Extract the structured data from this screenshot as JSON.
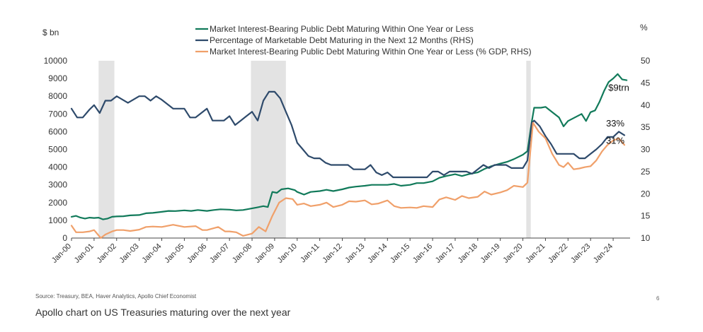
{
  "footer": {
    "source": "Source: Treasury, BEA, Haver Analytics, Apollo Chief Economist",
    "caption": "Apollo chart on US Treasuries maturing over the next year",
    "page_number": "6"
  },
  "chart_data": {
    "type": "line",
    "y_left_unit": "$ bn",
    "y_right_unit": "%",
    "ylim_left": [
      0,
      10000
    ],
    "ylim_right": [
      10,
      50
    ],
    "y_left_ticks": [
      0,
      1000,
      2000,
      3000,
      4000,
      5000,
      6000,
      7000,
      8000,
      9000,
      10000
    ],
    "y_right_ticks": [
      10,
      15,
      20,
      25,
      30,
      35,
      40,
      45,
      50
    ],
    "x_range": [
      2000.0,
      2024.75
    ],
    "x_tick_labels": [
      "Jan-00",
      "Jan-01",
      "Jan-02",
      "Jan-03",
      "Jan-04",
      "Jan-05",
      "Jan-06",
      "Jan-07",
      "Jan-08",
      "Jan-09",
      "Jan-10",
      "Jan-11",
      "Jan-12",
      "Jan-13",
      "Jan-14",
      "Jan-15",
      "Jan-16",
      "Jan-17",
      "Jan-18",
      "Jan-19",
      "Jan-20",
      "Jan-21",
      "Jan-22",
      "Jan-23",
      "Jan-24"
    ],
    "recession_shading": [
      [
        2001.2,
        2001.9
      ],
      [
        2007.95,
        2009.5
      ],
      [
        2020.15,
        2020.35
      ]
    ],
    "legend": [
      {
        "label": "Market Interest-Bearing Public Debt Maturing Within One Year or Less",
        "color": "#117a5a"
      },
      {
        "label": "Percentage of Marketable Debt Maturing in the Next 12 Months (RHS)",
        "color": "#2e4a6b"
      },
      {
        "label": "Market Interest-Bearing Public Debt Maturing Within One Year or Less (% GDP, RHS)",
        "color": "#f0a06a"
      }
    ],
    "annotations": [
      {
        "text": "$9trn",
        "x": 2024.1,
        "y": 8300,
        "axis": "left"
      },
      {
        "text": "33%",
        "x": 2024.0,
        "y": 35.2,
        "axis": "right"
      },
      {
        "text": "31%",
        "x": 2024.0,
        "y": 31.3,
        "axis": "right"
      }
    ],
    "series": [
      {
        "name": "Market Interest-Bearing Public Debt Maturing Within One Year or Less",
        "axis": "left",
        "color": "#117a5a",
        "points": [
          [
            2000.0,
            1200
          ],
          [
            2000.2,
            1250
          ],
          [
            2000.4,
            1150
          ],
          [
            2000.6,
            1100
          ],
          [
            2000.8,
            1150
          ],
          [
            2001.0,
            1130
          ],
          [
            2001.2,
            1150
          ],
          [
            2001.4,
            1050
          ],
          [
            2001.6,
            1100
          ],
          [
            2001.8,
            1200
          ],
          [
            2002.0,
            1220
          ],
          [
            2002.3,
            1230
          ],
          [
            2002.6,
            1280
          ],
          [
            2003.0,
            1300
          ],
          [
            2003.3,
            1400
          ],
          [
            2003.6,
            1420
          ],
          [
            2004.0,
            1480
          ],
          [
            2004.3,
            1530
          ],
          [
            2004.6,
            1520
          ],
          [
            2005.0,
            1560
          ],
          [
            2005.3,
            1530
          ],
          [
            2005.6,
            1580
          ],
          [
            2006.0,
            1530
          ],
          [
            2006.3,
            1580
          ],
          [
            2006.6,
            1620
          ],
          [
            2007.0,
            1600
          ],
          [
            2007.3,
            1560
          ],
          [
            2007.6,
            1580
          ],
          [
            2007.9,
            1650
          ],
          [
            2008.2,
            1720
          ],
          [
            2008.5,
            1800
          ],
          [
            2008.7,
            1750
          ],
          [
            2008.9,
            2600
          ],
          [
            2009.1,
            2550
          ],
          [
            2009.3,
            2750
          ],
          [
            2009.6,
            2800
          ],
          [
            2009.9,
            2700
          ],
          [
            2010.0,
            2600
          ],
          [
            2010.3,
            2450
          ],
          [
            2010.6,
            2600
          ],
          [
            2011.0,
            2650
          ],
          [
            2011.3,
            2720
          ],
          [
            2011.6,
            2650
          ],
          [
            2012.0,
            2750
          ],
          [
            2012.3,
            2850
          ],
          [
            2012.6,
            2900
          ],
          [
            2013.0,
            2950
          ],
          [
            2013.3,
            3000
          ],
          [
            2013.6,
            3000
          ],
          [
            2014.0,
            3000
          ],
          [
            2014.3,
            3050
          ],
          [
            2014.6,
            2950
          ],
          [
            2015.0,
            3000
          ],
          [
            2015.3,
            3100
          ],
          [
            2015.6,
            3100
          ],
          [
            2016.0,
            3200
          ],
          [
            2016.3,
            3400
          ],
          [
            2016.6,
            3500
          ],
          [
            2017.0,
            3600
          ],
          [
            2017.3,
            3500
          ],
          [
            2017.6,
            3600
          ],
          [
            2018.0,
            3700
          ],
          [
            2018.3,
            3900
          ],
          [
            2018.6,
            4050
          ],
          [
            2019.0,
            4200
          ],
          [
            2019.3,
            4300
          ],
          [
            2019.6,
            4450
          ],
          [
            2020.0,
            4700
          ],
          [
            2020.2,
            4900
          ],
          [
            2020.4,
            6600
          ],
          [
            2020.5,
            7350
          ],
          [
            2020.8,
            7350
          ],
          [
            2021.0,
            7400
          ],
          [
            2021.3,
            7100
          ],
          [
            2021.6,
            6800
          ],
          [
            2021.8,
            6300
          ],
          [
            2022.0,
            6600
          ],
          [
            2022.3,
            6800
          ],
          [
            2022.6,
            7000
          ],
          [
            2022.8,
            6600
          ],
          [
            2023.0,
            7100
          ],
          [
            2023.2,
            7200
          ],
          [
            2023.4,
            7700
          ],
          [
            2023.6,
            8300
          ],
          [
            2023.8,
            8800
          ],
          [
            2024.0,
            9000
          ],
          [
            2024.2,
            9250
          ],
          [
            2024.4,
            8950
          ],
          [
            2024.6,
            8900
          ]
        ]
      },
      {
        "name": "Percentage of Marketable Debt Maturing in the Next 12 Months (RHS)",
        "axis": "right",
        "color": "#2e4a6b",
        "points": [
          [
            2000.0,
            39.2
          ],
          [
            2000.25,
            37.2
          ],
          [
            2000.5,
            37.2
          ],
          [
            2000.8,
            39.0
          ],
          [
            2001.0,
            40.0
          ],
          [
            2001.25,
            38.2
          ],
          [
            2001.5,
            41.0
          ],
          [
            2001.75,
            41.0
          ],
          [
            2002.0,
            42.0
          ],
          [
            2002.5,
            40.5
          ],
          [
            2003.0,
            42.0
          ],
          [
            2003.25,
            42.0
          ],
          [
            2003.5,
            41.0
          ],
          [
            2003.75,
            42.0
          ],
          [
            2004.0,
            41.2
          ],
          [
            2004.5,
            39.2
          ],
          [
            2005.0,
            39.2
          ],
          [
            2005.25,
            37.2
          ],
          [
            2005.5,
            37.2
          ],
          [
            2005.75,
            38.2
          ],
          [
            2006.0,
            39.2
          ],
          [
            2006.25,
            36.5
          ],
          [
            2006.5,
            36.5
          ],
          [
            2006.75,
            36.5
          ],
          [
            2007.0,
            37.5
          ],
          [
            2007.25,
            35.5
          ],
          [
            2007.5,
            36.5
          ],
          [
            2007.75,
            37.5
          ],
          [
            2008.0,
            38.5
          ],
          [
            2008.25,
            36.5
          ],
          [
            2008.5,
            41.0
          ],
          [
            2008.75,
            43.0
          ],
          [
            2009.0,
            43.0
          ],
          [
            2009.25,
            41.5
          ],
          [
            2009.5,
            38.5
          ],
          [
            2009.75,
            35.5
          ],
          [
            2010.0,
            31.5
          ],
          [
            2010.25,
            30.0
          ],
          [
            2010.5,
            28.5
          ],
          [
            2010.75,
            28.0
          ],
          [
            2011.0,
            28.0
          ],
          [
            2011.25,
            27.0
          ],
          [
            2011.5,
            26.5
          ],
          [
            2011.75,
            26.5
          ],
          [
            2012.0,
            26.5
          ],
          [
            2012.25,
            26.5
          ],
          [
            2012.5,
            25.5
          ],
          [
            2012.75,
            25.5
          ],
          [
            2013.0,
            25.5
          ],
          [
            2013.25,
            26.5
          ],
          [
            2013.5,
            24.8
          ],
          [
            2013.75,
            24.2
          ],
          [
            2014.0,
            24.8
          ],
          [
            2014.25,
            23.7
          ],
          [
            2014.5,
            23.7
          ],
          [
            2014.75,
            23.7
          ],
          [
            2015.0,
            23.7
          ],
          [
            2015.25,
            23.7
          ],
          [
            2015.5,
            23.7
          ],
          [
            2015.75,
            23.7
          ],
          [
            2016.0,
            25.0
          ],
          [
            2016.25,
            25.0
          ],
          [
            2016.5,
            24.2
          ],
          [
            2016.75,
            25.0
          ],
          [
            2017.0,
            25.0
          ],
          [
            2017.25,
            25.0
          ],
          [
            2017.5,
            25.0
          ],
          [
            2017.75,
            24.5
          ],
          [
            2018.0,
            25.5
          ],
          [
            2018.25,
            26.5
          ],
          [
            2018.5,
            25.8
          ],
          [
            2018.75,
            26.5
          ],
          [
            2019.0,
            26.5
          ],
          [
            2019.25,
            26.5
          ],
          [
            2019.5,
            25.8
          ],
          [
            2019.75,
            25.8
          ],
          [
            2020.0,
            25.8
          ],
          [
            2020.2,
            27.5
          ],
          [
            2020.4,
            36.0
          ],
          [
            2020.5,
            36.5
          ],
          [
            2020.75,
            35.2
          ],
          [
            2021.0,
            33.0
          ],
          [
            2021.25,
            31.2
          ],
          [
            2021.5,
            29.0
          ],
          [
            2021.75,
            29.0
          ],
          [
            2022.0,
            29.0
          ],
          [
            2022.25,
            29.0
          ],
          [
            2022.5,
            28.0
          ],
          [
            2022.75,
            28.0
          ],
          [
            2023.0,
            29.0
          ],
          [
            2023.25,
            30.0
          ],
          [
            2023.5,
            31.2
          ],
          [
            2023.75,
            32.8
          ],
          [
            2024.0,
            32.8
          ],
          [
            2024.25,
            34.0
          ],
          [
            2024.5,
            33.2
          ]
        ]
      },
      {
        "name": "Market Interest-Bearing Public Debt Maturing Within One Year or Less (% GDP, RHS)",
        "axis": "right",
        "color": "#f0a06a",
        "points": [
          [
            2000.0,
            12.8
          ],
          [
            2000.2,
            11.3
          ],
          [
            2000.5,
            11.3
          ],
          [
            2000.8,
            11.5
          ],
          [
            2001.0,
            11.8
          ],
          [
            2001.3,
            10.0
          ],
          [
            2001.5,
            10.8
          ],
          [
            2001.8,
            11.5
          ],
          [
            2002.0,
            11.8
          ],
          [
            2002.3,
            11.8
          ],
          [
            2002.6,
            11.6
          ],
          [
            2003.0,
            11.9
          ],
          [
            2003.3,
            12.5
          ],
          [
            2003.6,
            12.6
          ],
          [
            2004.0,
            12.5
          ],
          [
            2004.5,
            13.0
          ],
          [
            2005.0,
            12.5
          ],
          [
            2005.5,
            12.7
          ],
          [
            2005.8,
            11.8
          ],
          [
            2006.0,
            11.8
          ],
          [
            2006.5,
            12.5
          ],
          [
            2006.8,
            11.5
          ],
          [
            2007.0,
            11.5
          ],
          [
            2007.3,
            11.3
          ],
          [
            2007.6,
            10.5
          ],
          [
            2008.0,
            11.0
          ],
          [
            2008.3,
            12.5
          ],
          [
            2008.6,
            11.5
          ],
          [
            2008.9,
            15.0
          ],
          [
            2009.2,
            18.0
          ],
          [
            2009.5,
            19.0
          ],
          [
            2009.8,
            18.8
          ],
          [
            2010.0,
            17.5
          ],
          [
            2010.3,
            17.8
          ],
          [
            2010.6,
            17.2
          ],
          [
            2011.0,
            17.5
          ],
          [
            2011.3,
            18.0
          ],
          [
            2011.6,
            17.0
          ],
          [
            2012.0,
            17.5
          ],
          [
            2012.3,
            18.3
          ],
          [
            2012.6,
            18.2
          ],
          [
            2013.0,
            18.5
          ],
          [
            2013.3,
            17.6
          ],
          [
            2013.6,
            17.8
          ],
          [
            2014.0,
            18.5
          ],
          [
            2014.3,
            17.2
          ],
          [
            2014.6,
            16.8
          ],
          [
            2015.0,
            16.9
          ],
          [
            2015.3,
            16.8
          ],
          [
            2015.6,
            17.2
          ],
          [
            2016.0,
            17.0
          ],
          [
            2016.3,
            18.7
          ],
          [
            2016.6,
            19.2
          ],
          [
            2017.0,
            18.6
          ],
          [
            2017.3,
            19.5
          ],
          [
            2017.6,
            19.0
          ],
          [
            2018.0,
            19.3
          ],
          [
            2018.3,
            20.5
          ],
          [
            2018.6,
            19.8
          ],
          [
            2019.0,
            20.3
          ],
          [
            2019.3,
            20.8
          ],
          [
            2019.6,
            21.8
          ],
          [
            2020.0,
            21.5
          ],
          [
            2020.2,
            22.5
          ],
          [
            2020.45,
            36.0
          ],
          [
            2020.7,
            34.0
          ],
          [
            2021.0,
            32.5
          ],
          [
            2021.3,
            29.0
          ],
          [
            2021.6,
            26.5
          ],
          [
            2021.8,
            26.0
          ],
          [
            2022.0,
            27.0
          ],
          [
            2022.25,
            25.5
          ],
          [
            2022.5,
            25.7
          ],
          [
            2022.75,
            26.0
          ],
          [
            2023.0,
            26.2
          ],
          [
            2023.25,
            27.5
          ],
          [
            2023.5,
            29.5
          ],
          [
            2023.75,
            31.0
          ],
          [
            2024.0,
            32.0
          ],
          [
            2024.25,
            32.5
          ],
          [
            2024.5,
            31.0
          ]
        ]
      }
    ]
  }
}
